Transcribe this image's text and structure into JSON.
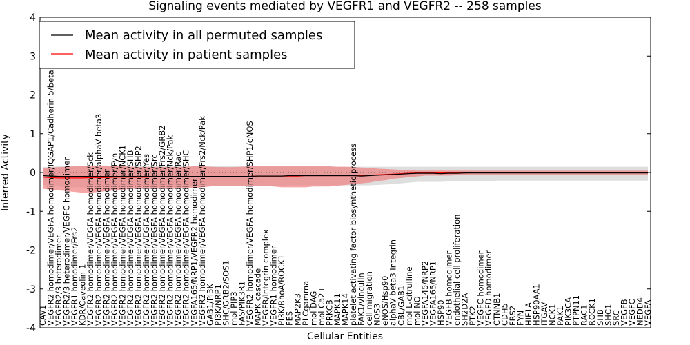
{
  "chart_data": {
    "type": "line",
    "title": "Signaling events mediated by VEGFR1 and VEGFR2 -- 258 samples",
    "xlabel": "Cellular Entities",
    "ylabel": "Inferred Activity",
    "ylim": [
      -4,
      4
    ],
    "yticks": [
      -4,
      -3,
      -2,
      -1,
      0,
      1,
      2,
      3,
      4
    ],
    "legend_position": "top-left",
    "colors": {
      "permuted": "#000000",
      "patient": "#ff0000",
      "patient_band": "#f08080",
      "permuted_band": "#d3d3d3"
    },
    "categories": [
      "CAV1",
      "VEGFR2 homodimer/VEGFA homodimer/IQGAP1/Cadherin 5/beta catenin",
      "VEGFR2/3 heterodimer",
      "VEGFR2/3 heterodimer/VEGFC homodimer",
      "VEGFR1 homodimer/Frs2",
      "KDR/Caveolin-1",
      "VEGFR2 homodimer/VEGFA homodimer/Sck",
      "VEGFR2 homodimer/VEGFA homodimer/alphaV beta3",
      "VEGFR2 homodimer/VEGFA homodimer",
      "VEGFR2 homodimer/VEGFA homodimer/Fyn",
      "VEGFR2 homodimer/VEGFA homodimer/NCK1",
      "VEGFR2 homodimer/VEGFA homodimer/SHB",
      "VEGFR2 homodimer/VEGFA homodimer/SHP2",
      "VEGFR2 homodimer/VEGFA homodimer/Yes",
      "VEGFR2 homodimer/VEGFA homodimer/Src",
      "VEGFR2 homodimer/VEGFA homodimer/Frs2/GRB2",
      "VEGFR2 homodimer/VEGFA homodimer/Nck/Pak",
      "VEGFR2 homodimer/VEGFA homodimer/Rac",
      "VEGFR2 homodimer/VEGFA homodimer/SHC",
      "VEGFA165/NRP1/VEGFR2 homodimer",
      "VEGFR2 homodimer/VEGFA homodimer/Frs2/Nck/Pak",
      "GAB1/PI3K",
      "PI3K/NRP1",
      "SHC/GRB2/SOS1",
      "mol PIP3",
      "FAS/PIK3R1",
      "VEGFR2 homodimer/VEGFA homodimer/SHP1/eNOS",
      "MAPK cascade",
      "VEGFR/Integrin complex",
      "VEGFR1 homodimer",
      "PI3K/RhoA/ROCK1",
      "FES",
      "MAP2K3",
      "PLCgamma",
      "mol DAG",
      "mol Ca2+",
      "PRKCB",
      "MAPK11",
      "MAPK14",
      "platelet activating factor biosynthetic process",
      "FAK1/vinculin",
      "cell migration",
      "NOS3",
      "eNOS/Hsp90",
      "alphaV beta3 Integrin",
      "CBL/GAB1",
      "mol L-citrulline",
      "mol NO",
      "VEGFA145/NRP2",
      "VEGFA165/NRP1",
      "HSP90",
      "VEGFB homodimer",
      "endothelial cell proliferation",
      "SH2D2A",
      "PTK2",
      "VEGFC homodimer",
      "VEGFD homodimer",
      "CTNNB1",
      "CDH5",
      "FRS2",
      "FYN",
      "HIF1A",
      "HSP90AA1",
      "ITGAV",
      "NCK1",
      "PAK1",
      "PIK3CA",
      "PTPN11",
      "RAC1",
      "ROCK1",
      "SHB",
      "SHC1",
      "SRC",
      "VEGFB",
      "VEGFC",
      "NEDD4",
      "VEGFA"
    ],
    "series": [
      {
        "name": "Mean activity in all permuted samples",
        "color": "#000000",
        "values": [
          -0.08,
          -0.09,
          -0.1,
          -0.1,
          -0.1,
          -0.1,
          -0.1,
          -0.1,
          -0.1,
          -0.1,
          -0.1,
          -0.1,
          -0.1,
          -0.1,
          -0.1,
          -0.1,
          -0.1,
          -0.1,
          -0.1,
          -0.1,
          -0.1,
          -0.1,
          -0.1,
          -0.1,
          -0.1,
          -0.1,
          -0.1,
          -0.09,
          -0.09,
          -0.09,
          -0.09,
          -0.08,
          -0.08,
          -0.08,
          -0.08,
          -0.08,
          -0.08,
          -0.08,
          -0.08,
          -0.08,
          -0.09,
          -0.08,
          -0.07,
          -0.06,
          -0.05,
          -0.04,
          -0.03,
          -0.02,
          -0.02,
          -0.02,
          -0.03,
          -0.02,
          -0.02,
          -0.01,
          -0.01,
          -0.01,
          -0.01,
          -0.01,
          -0.01,
          -0.01,
          -0.01,
          -0.01,
          -0.01,
          -0.01,
          -0.01,
          -0.01,
          -0.01,
          -0.01,
          -0.01,
          -0.01,
          -0.01,
          -0.01,
          -0.01,
          -0.01,
          -0.01,
          -0.01,
          -0.01
        ],
        "lower": [
          -0.32,
          -0.34,
          -0.36,
          -0.38,
          -0.38,
          -0.38,
          -0.38,
          -0.38,
          -0.37,
          -0.37,
          -0.37,
          -0.36,
          -0.36,
          -0.36,
          -0.36,
          -0.36,
          -0.36,
          -0.36,
          -0.36,
          -0.35,
          -0.35,
          -0.35,
          -0.35,
          -0.35,
          -0.35,
          -0.35,
          -0.35,
          -0.34,
          -0.34,
          -0.34,
          -0.34,
          -0.33,
          -0.33,
          -0.33,
          -0.33,
          -0.33,
          -0.33,
          -0.33,
          -0.33,
          -0.33,
          -0.33,
          -0.33,
          -0.32,
          -0.31,
          -0.3,
          -0.28,
          -0.26,
          -0.24,
          -0.24,
          -0.24,
          -0.24,
          -0.23,
          -0.23,
          -0.22,
          -0.22,
          -0.22,
          -0.22,
          -0.21,
          -0.21,
          -0.21,
          -0.21,
          -0.21,
          -0.21,
          -0.21,
          -0.21,
          -0.21,
          -0.21,
          -0.21,
          -0.21,
          -0.21,
          -0.21,
          -0.21,
          -0.21,
          -0.21,
          -0.21,
          -0.21,
          -0.21
        ],
        "upper": [
          0.14,
          0.15,
          0.16,
          0.17,
          0.17,
          0.17,
          0.17,
          0.17,
          0.17,
          0.17,
          0.16,
          0.16,
          0.16,
          0.16,
          0.16,
          0.16,
          0.16,
          0.16,
          0.16,
          0.16,
          0.16,
          0.16,
          0.16,
          0.16,
          0.16,
          0.16,
          0.16,
          0.15,
          0.15,
          0.15,
          0.15,
          0.15,
          0.15,
          0.15,
          0.15,
          0.15,
          0.15,
          0.15,
          0.15,
          0.15,
          0.15,
          0.15,
          0.15,
          0.15,
          0.15,
          0.15,
          0.15,
          0.15,
          0.15,
          0.15,
          0.15,
          0.15,
          0.15,
          0.15,
          0.15,
          0.15,
          0.15,
          0.15,
          0.15,
          0.15,
          0.15,
          0.15,
          0.15,
          0.15,
          0.15,
          0.15,
          0.15,
          0.15,
          0.15,
          0.15,
          0.15,
          0.15,
          0.15,
          0.15,
          0.15,
          0.15,
          0.15
        ]
      },
      {
        "name": "Mean activity in patient samples",
        "color": "#ff0000",
        "values": [
          -0.12,
          -0.13,
          -0.14,
          -0.14,
          -0.14,
          -0.14,
          -0.13,
          -0.13,
          -0.13,
          -0.12,
          -0.12,
          -0.12,
          -0.12,
          -0.12,
          -0.11,
          -0.11,
          -0.11,
          -0.11,
          -0.11,
          -0.1,
          -0.1,
          -0.1,
          -0.1,
          -0.1,
          -0.1,
          -0.1,
          -0.1,
          -0.09,
          -0.09,
          -0.09,
          -0.09,
          -0.09,
          -0.09,
          -0.08,
          -0.08,
          -0.08,
          -0.08,
          -0.08,
          -0.08,
          -0.08,
          -0.08,
          -0.07,
          -0.06,
          -0.05,
          -0.04,
          -0.03,
          -0.02,
          -0.01,
          -0.01,
          -0.01,
          -0.01,
          -0.01,
          -0.01,
          -0.01,
          0,
          0,
          0,
          0,
          0,
          0,
          0,
          0,
          0,
          0,
          0,
          0,
          0,
          0,
          0,
          0,
          0,
          0,
          0,
          0,
          0,
          0,
          0
        ],
        "lower": [
          -0.42,
          -0.44,
          -0.46,
          -0.48,
          -0.5,
          -0.52,
          -0.52,
          -0.5,
          -0.48,
          -0.46,
          -0.44,
          -0.42,
          -0.42,
          -0.42,
          -0.42,
          -0.42,
          -0.42,
          -0.42,
          -0.4,
          -0.4,
          -0.38,
          -0.36,
          -0.34,
          -0.34,
          -0.34,
          -0.34,
          -0.34,
          -0.34,
          -0.34,
          -0.36,
          -0.38,
          -0.38,
          -0.38,
          -0.38,
          -0.36,
          -0.36,
          -0.36,
          -0.34,
          -0.32,
          -0.3,
          -0.28,
          -0.26,
          -0.22,
          -0.2,
          -0.16,
          -0.14,
          -0.12,
          -0.1,
          -0.08,
          -0.08,
          -0.08,
          -0.08,
          -0.07,
          -0.06,
          -0.06,
          -0.06,
          -0.06,
          -0.06,
          -0.06,
          -0.06,
          -0.06,
          -0.06,
          -0.06,
          -0.06,
          -0.06,
          -0.06,
          -0.06,
          -0.06,
          -0.06,
          -0.06,
          -0.06,
          -0.06,
          -0.06,
          -0.06,
          -0.06,
          -0.06,
          -0.06
        ],
        "upper": [
          0.12,
          0.13,
          0.14,
          0.15,
          0.16,
          0.17,
          0.18,
          0.18,
          0.18,
          0.17,
          0.16,
          0.15,
          0.14,
          0.14,
          0.14,
          0.14,
          0.14,
          0.14,
          0.15,
          0.16,
          0.16,
          0.15,
          0.14,
          0.14,
          0.14,
          0.15,
          0.16,
          0.17,
          0.17,
          0.17,
          0.17,
          0.17,
          0.16,
          0.16,
          0.16,
          0.16,
          0.16,
          0.15,
          0.15,
          0.14,
          0.13,
          0.12,
          0.1,
          0.09,
          0.08,
          0.07,
          0.06,
          0.05,
          0.05,
          0.05,
          0.05,
          0.05,
          0.05,
          0.05,
          0.05,
          0.05,
          0.05,
          0.05,
          0.05,
          0.05,
          0.05,
          0.05,
          0.05,
          0.05,
          0.05,
          0.05,
          0.05,
          0.05,
          0.05,
          0.05,
          0.05,
          0.05,
          0.05,
          0.05,
          0.05,
          0.05,
          0.05
        ]
      }
    ]
  }
}
